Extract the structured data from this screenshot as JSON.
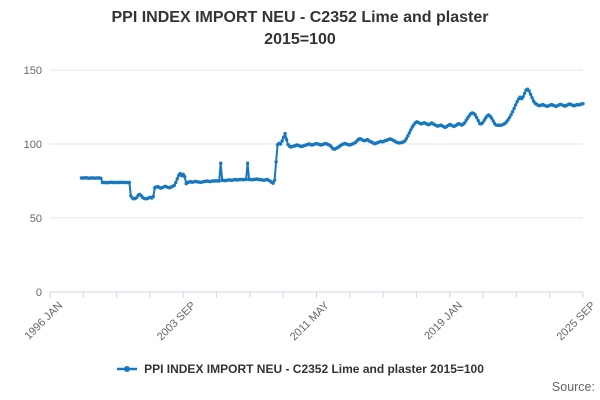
{
  "title": {
    "line1": "PPI INDEX IMPORT NEU - C2352 Lime and plaster",
    "line2": "2015=100"
  },
  "legend": {
    "label": "PPI INDEX IMPORT NEU - C2352 Lime and plaster 2015=100"
  },
  "source_label": "Source:",
  "colors": {
    "line": "#1878bf",
    "grid": "#e6e6e6",
    "axis": "#ccd6eb",
    "tick_text": "#666666",
    "title_text": "#333333"
  },
  "chart_data": {
    "type": "line",
    "title": "PPI INDEX IMPORT NEU - C2352 Lime and plaster 2015=100",
    "x_axis": {
      "start": "1996 JAN",
      "end_tick": "2025 SEP",
      "total_months": 356,
      "tick_count": 17,
      "labeled_tick_indices": [
        0,
        4,
        8,
        12,
        16
      ],
      "tick_labels": [
        "1996 JAN",
        "2003 SEP",
        "2011 MAY",
        "2019 JAN",
        "2025 SEP"
      ]
    },
    "y_axis": {
      "min": 0,
      "max": 150,
      "ticks": [
        0,
        50,
        100,
        150
      ],
      "grid": true
    },
    "legend_position": "bottom",
    "series": [
      {
        "name": "PPI INDEX IMPORT NEU - C2352 Lime and plaster 2015=100",
        "start_month": "1997 OCT",
        "start_month_offset": 21,
        "frequency": "monthly",
        "values": [
          77,
          77,
          77,
          77.2,
          77,
          76.8,
          77,
          77,
          77.1,
          76.9,
          77,
          77,
          77,
          76.8,
          74,
          74,
          74,
          73.8,
          74,
          74,
          74.2,
          74,
          74,
          74,
          73.9,
          74,
          74.1,
          74,
          74,
          74,
          74,
          73.9,
          74,
          65,
          63.5,
          63,
          63.2,
          64,
          65.5,
          66,
          65,
          63.8,
          63.2,
          63,
          63.2,
          63.6,
          64,
          63.5,
          64.5,
          70.5,
          71,
          71.2,
          70.6,
          70.2,
          70.5,
          71,
          71.4,
          71,
          70.6,
          70.5,
          71,
          71.5,
          72,
          74,
          76.5,
          79,
          80,
          78.5,
          79.5,
          78,
          73.2,
          74,
          74.3,
          74.5,
          74.2,
          74.4,
          74.8,
          74.5,
          74.4,
          74.2,
          74.1,
          74.4,
          74.6,
          74.8,
          75,
          74.7,
          74.6,
          74.9,
          75,
          75,
          75.2,
          75,
          75,
          87,
          75.4,
          75.5,
          75.2,
          75.5,
          75.6,
          75.8,
          75.5,
          75.6,
          75.8,
          76,
          75.7,
          75.9,
          76,
          76,
          75.9,
          76,
          76,
          87,
          76,
          76,
          75.8,
          76,
          76.1,
          76.4,
          76,
          76,
          75.9,
          75.6,
          75.5,
          75.8,
          76,
          75.5,
          75,
          74.2,
          73.5,
          75.5,
          88,
          99.5,
          100.5,
          100,
          102,
          104.5,
          107,
          103,
          99.5,
          98.5,
          98,
          98.3,
          98.6,
          99,
          99.4,
          99,
          98.6,
          98.3,
          98.6,
          99,
          99.3,
          99.6,
          100,
          99.6,
          99.3,
          99.6,
          100,
          100.3,
          100,
          99.6,
          99.3,
          99.6,
          100,
          100.4,
          100,
          99.5,
          99,
          98,
          96.8,
          96.5,
          97,
          97.5,
          98.2,
          99,
          99.5,
          100,
          100.4,
          100,
          99.6,
          99.3,
          99.6,
          100,
          100.5,
          101,
          102,
          103,
          103.6,
          103.2,
          102.6,
          102.2,
          102.6,
          103,
          102.2,
          101.6,
          101.2,
          100.6,
          100.2,
          100.6,
          101,
          101.4,
          101.8,
          101.4,
          101.8,
          102.2,
          102.6,
          103,
          103.4,
          103.2,
          102.6,
          102,
          101.4,
          101,
          100.7,
          100.8,
          101,
          101.4,
          102,
          103.5,
          105.5,
          107.5,
          109.5,
          111.5,
          113,
          114.3,
          115,
          114.6,
          114,
          113.6,
          114,
          114.4,
          113.8,
          113.4,
          113,
          113.6,
          114.2,
          113.6,
          113,
          112.4,
          112,
          112.4,
          112.8,
          112.2,
          111.6,
          111.2,
          111.8,
          112.6,
          113.2,
          112.8,
          112.2,
          111.8,
          112.4,
          113.2,
          113.8,
          113.4,
          112.8,
          113.4,
          114.4,
          116,
          117.6,
          119,
          120.4,
          121,
          120.6,
          119.6,
          117.8,
          115.8,
          113.8,
          113.6,
          114.4,
          116,
          117.6,
          119,
          119.6,
          118.8,
          117.4,
          115.6,
          113.8,
          112.8,
          112.6,
          112.8,
          112.6,
          113,
          113.4,
          114,
          115,
          116.4,
          118,
          119.8,
          121.8,
          124,
          126.4,
          128.6,
          130.4,
          131.6,
          130.6,
          131.8,
          134.2,
          136.4,
          137,
          135.8,
          133.6,
          131.2,
          129,
          127.6,
          126.8,
          126.2,
          125.8,
          126.2,
          126.6,
          126.2,
          125.8,
          125.4,
          125.8,
          126.2,
          126.6,
          126.2,
          125.8,
          125.4,
          125.8,
          126.4,
          126.8,
          126.4,
          126,
          125.6,
          126,
          126.6,
          127,
          126.6,
          126.2,
          125.8,
          126.2,
          126.6,
          126.4,
          126.6,
          127,
          127.2
        ]
      }
    ]
  }
}
